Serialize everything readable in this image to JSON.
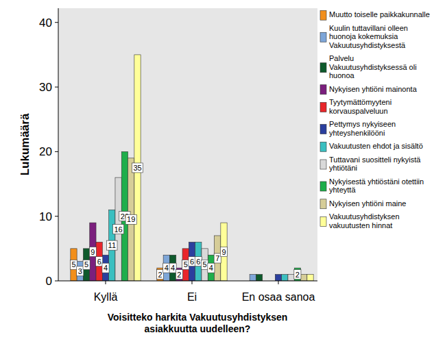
{
  "chart_data": {
    "type": "bar",
    "x_label": "Voisitteko harkita Vakuutusyhdistyksen asiakkuutta uudelleen?",
    "y_label": "Lukumäärä",
    "categories": [
      "Kyllä",
      "Ei",
      "En osaa sanoa"
    ],
    "series": [
      {
        "name": "Muutto toiselle paikkakunnalle",
        "color": "#f28f1c",
        "values": [
          5,
          2,
          0
        ]
      },
      {
        "name": "Kuulin tuttavillani olleen huonoja kokemuksia Vakuutusyhdistyksestä",
        "color": "#7ea6d8",
        "values": [
          3,
          4,
          1
        ]
      },
      {
        "name": "Palvelu Vakuutusyhdistyksessä oli huonoa",
        "color": "#0e5a2c",
        "values": [
          5,
          4,
          1
        ]
      },
      {
        "name": "Nykyisen yhtiöni mainonta",
        "color": "#7b1f7d",
        "values": [
          9,
          2,
          0
        ]
      },
      {
        "name": "Tyytymättömyyteni korvauspalveluun",
        "color": "#e8262b",
        "values": [
          6,
          5,
          0
        ]
      },
      {
        "name": "Pettymys nykyiseen yhteyshenkilööni",
        "color": "#2b3f9e",
        "values": [
          4,
          6,
          1
        ]
      },
      {
        "name": "Vakuutusten ehdot ja sisältö",
        "color": "#3bbfc0",
        "values": [
          11,
          6,
          1
        ]
      },
      {
        "name": "Tuttavani suositteli nykyistä yhtiötäni",
        "color": "#d9d9d9",
        "values": [
          16,
          5,
          1
        ]
      },
      {
        "name": "Nykyisestä yhtiöstäni otettiin yhteyttä",
        "color": "#1fae4b",
        "values": [
          20,
          4,
          2
        ]
      },
      {
        "name": "Nykyisen yhtiöni maine",
        "color": "#d6cd98",
        "values": [
          19,
          7,
          1
        ]
      },
      {
        "name": "Vakuutusyhdistyksen vakuutusten hinnat",
        "color": "#ffff99",
        "values": [
          35,
          9,
          1
        ]
      }
    ],
    "ylim": [
      0,
      42.2
    ],
    "yticks": [
      0,
      10,
      20,
      30,
      40
    ],
    "grid": false,
    "legend": "right",
    "data_labels": true
  }
}
